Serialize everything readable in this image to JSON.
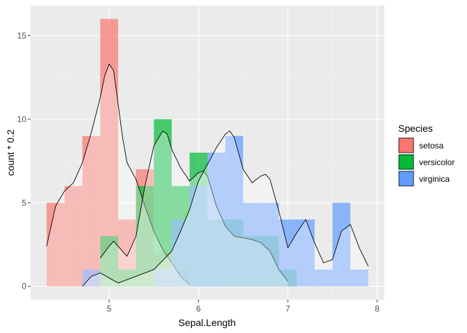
{
  "chart_data": {
    "type": "histogram+density",
    "xlabel": "Sepal.Length",
    "ylabel": "count * 0.2",
    "xlim": [
      4.12,
      8.08
    ],
    "ylim": [
      -0.8,
      16.8
    ],
    "x_ticks": [
      5,
      6,
      7,
      8
    ],
    "y_ticks": [
      0,
      5,
      10,
      15
    ],
    "grid": true,
    "bin_width": 0.2,
    "legend": {
      "title": "Species",
      "position": "right"
    },
    "series": [
      {
        "name": "setosa",
        "color": "#F8766D",
        "bins": [
          {
            "x0": 4.3,
            "x1": 4.5,
            "count": 5
          },
          {
            "x0": 4.5,
            "x1": 4.7,
            "count": 6
          },
          {
            "x0": 4.7,
            "x1": 4.9,
            "count": 9
          },
          {
            "x0": 4.9,
            "x1": 5.1,
            "count": 16
          },
          {
            "x0": 5.1,
            "x1": 5.3,
            "count": 4
          },
          {
            "x0": 5.3,
            "x1": 5.5,
            "count": 7
          },
          {
            "x0": 5.5,
            "x1": 5.7,
            "count": 2
          },
          {
            "x0": 5.7,
            "x1": 5.9,
            "count": 1
          }
        ],
        "density_x": [
          4.3,
          4.4,
          4.5,
          4.6,
          4.7,
          4.8,
          4.9,
          4.95,
          5.0,
          5.05,
          5.1,
          5.15,
          5.2,
          5.3,
          5.4,
          5.5,
          5.6,
          5.7,
          5.8,
          5.9
        ],
        "density_y": [
          2.4,
          4.8,
          5.7,
          6.2,
          7.4,
          9.2,
          11.3,
          12.6,
          13.3,
          12.9,
          10.9,
          8.9,
          7.4,
          6.4,
          4.8,
          3.3,
          2.2,
          1.4,
          0.6,
          0.1
        ]
      },
      {
        "name": "versicolor",
        "color": "#00BA38",
        "bins": [
          {
            "x0": 4.9,
            "x1": 5.1,
            "count": 3
          },
          {
            "x0": 5.1,
            "x1": 5.3,
            "count": 1
          },
          {
            "x0": 5.3,
            "x1": 5.5,
            "count": 6
          },
          {
            "x0": 5.5,
            "x1": 5.7,
            "count": 10
          },
          {
            "x0": 5.7,
            "x1": 5.9,
            "count": 6
          },
          {
            "x0": 5.9,
            "x1": 6.1,
            "count": 8
          },
          {
            "x0": 6.1,
            "x1": 6.3,
            "count": 4
          },
          {
            "x0": 6.3,
            "x1": 6.5,
            "count": 4
          },
          {
            "x0": 6.5,
            "x1": 6.7,
            "count": 3
          },
          {
            "x0": 6.7,
            "x1": 6.9,
            "count": 3
          },
          {
            "x0": 6.9,
            "x1": 7.1,
            "count": 1
          }
        ],
        "density_x": [
          4.9,
          5.0,
          5.05,
          5.1,
          5.2,
          5.3,
          5.4,
          5.5,
          5.6,
          5.65,
          5.7,
          5.8,
          5.9,
          6.0,
          6.05,
          6.1,
          6.2,
          6.3,
          6.4,
          6.5,
          6.6,
          6.7,
          6.8,
          6.9,
          7.0
        ],
        "density_y": [
          1.7,
          2.4,
          2.7,
          2.4,
          1.8,
          3.0,
          6.0,
          8.4,
          9.3,
          9.1,
          8.2,
          7.1,
          6.3,
          6.8,
          6.9,
          6.6,
          4.8,
          3.6,
          3.0,
          2.9,
          2.8,
          2.6,
          2.1,
          1.0,
          0.3
        ]
      },
      {
        "name": "virginica",
        "color": "#619CFF",
        "bins": [
          {
            "x0": 4.7,
            "x1": 4.9,
            "count": 1
          },
          {
            "x0": 5.5,
            "x1": 5.7,
            "count": 1
          },
          {
            "x0": 5.7,
            "x1": 5.9,
            "count": 4
          },
          {
            "x0": 5.9,
            "x1": 6.1,
            "count": 6
          },
          {
            "x0": 6.1,
            "x1": 6.3,
            "count": 8
          },
          {
            "x0": 6.3,
            "x1": 6.5,
            "count": 9
          },
          {
            "x0": 6.5,
            "x1": 6.7,
            "count": 5
          },
          {
            "x0": 6.7,
            "x1": 6.9,
            "count": 5
          },
          {
            "x0": 6.9,
            "x1": 7.1,
            "count": 4
          },
          {
            "x0": 7.1,
            "x1": 7.3,
            "count": 4
          },
          {
            "x0": 7.3,
            "x1": 7.5,
            "count": 1
          },
          {
            "x0": 7.5,
            "x1": 7.7,
            "count": 5
          },
          {
            "x0": 7.7,
            "x1": 7.9,
            "count": 1
          }
        ],
        "density_x": [
          4.7,
          4.8,
          4.9,
          5.0,
          5.1,
          5.3,
          5.5,
          5.7,
          5.8,
          5.9,
          6.0,
          6.1,
          6.2,
          6.3,
          6.35,
          6.4,
          6.5,
          6.6,
          6.7,
          6.75,
          6.8,
          6.9,
          7.0,
          7.1,
          7.2,
          7.3,
          7.4,
          7.5,
          7.6,
          7.7,
          7.8,
          7.9
        ],
        "density_y": [
          0.0,
          0.6,
          0.8,
          0.5,
          0.2,
          0.6,
          1.0,
          2.1,
          3.3,
          4.6,
          6.3,
          7.3,
          8.3,
          9.1,
          9.3,
          8.9,
          7.0,
          6.2,
          6.6,
          6.7,
          6.4,
          4.5,
          2.3,
          3.2,
          4.0,
          2.6,
          1.4,
          1.6,
          3.3,
          3.7,
          2.3,
          1.2
        ]
      }
    ]
  }
}
